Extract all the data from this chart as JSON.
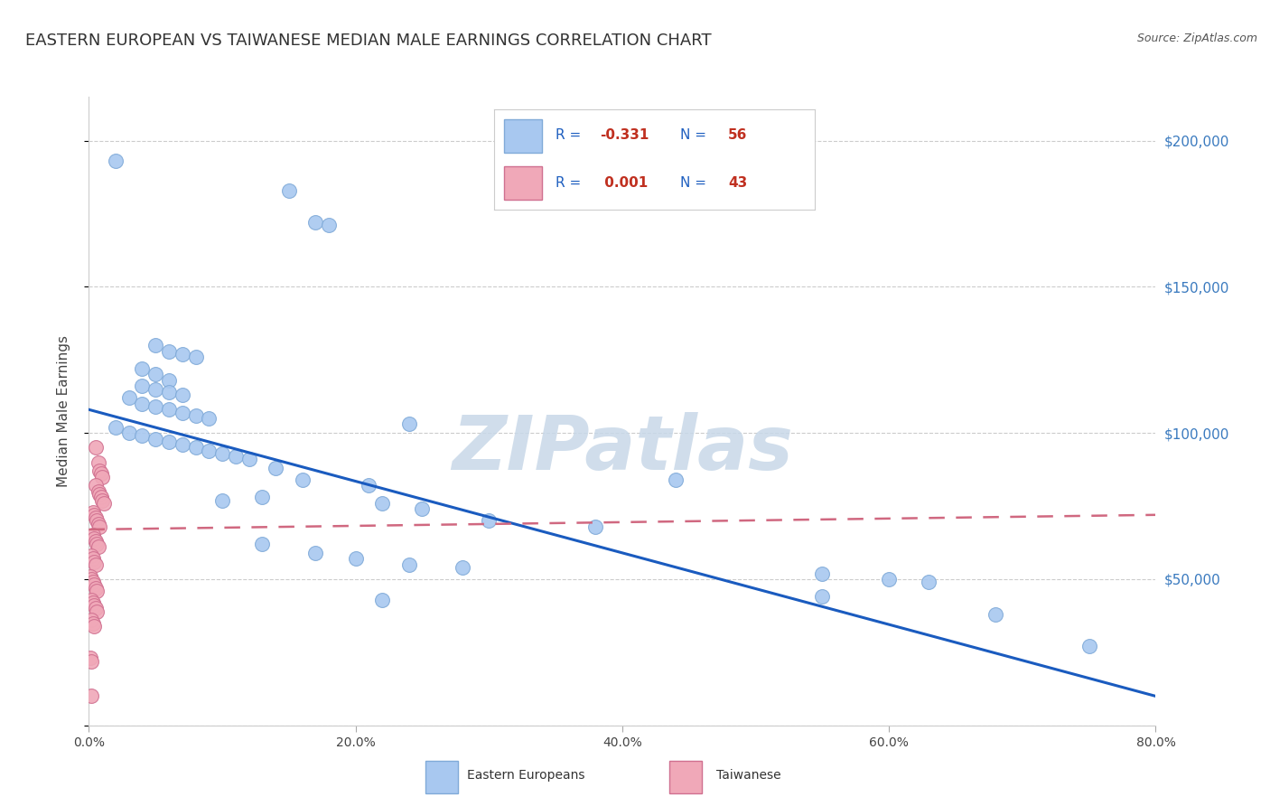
{
  "title": "EASTERN EUROPEAN VS TAIWANESE MEDIAN MALE EARNINGS CORRELATION CHART",
  "source": "Source: ZipAtlas.com",
  "ylabel": "Median Male Earnings",
  "xlim": [
    0,
    0.8
  ],
  "ylim": [
    0,
    215000
  ],
  "yticks": [
    0,
    50000,
    100000,
    150000,
    200000
  ],
  "xticks": [
    0.0,
    0.2,
    0.4,
    0.6,
    0.8
  ],
  "xtick_labels": [
    "0.0%",
    "20.0%",
    "40.0%",
    "60.0%",
    "80.0%"
  ],
  "watermark": "ZIPatlas",
  "blue_scatter": [
    [
      0.02,
      193000
    ],
    [
      0.15,
      183000
    ],
    [
      0.17,
      172000
    ],
    [
      0.18,
      171000
    ],
    [
      0.05,
      130000
    ],
    [
      0.06,
      128000
    ],
    [
      0.07,
      127000
    ],
    [
      0.08,
      126000
    ],
    [
      0.04,
      122000
    ],
    [
      0.05,
      120000
    ],
    [
      0.06,
      118000
    ],
    [
      0.04,
      116000
    ],
    [
      0.05,
      115000
    ],
    [
      0.06,
      114000
    ],
    [
      0.07,
      113000
    ],
    [
      0.03,
      112000
    ],
    [
      0.04,
      110000
    ],
    [
      0.05,
      109000
    ],
    [
      0.06,
      108000
    ],
    [
      0.07,
      107000
    ],
    [
      0.08,
      106000
    ],
    [
      0.09,
      105000
    ],
    [
      0.02,
      102000
    ],
    [
      0.03,
      100000
    ],
    [
      0.04,
      99000
    ],
    [
      0.05,
      98000
    ],
    [
      0.06,
      97000
    ],
    [
      0.07,
      96000
    ],
    [
      0.08,
      95000
    ],
    [
      0.09,
      94000
    ],
    [
      0.1,
      93000
    ],
    [
      0.11,
      92000
    ],
    [
      0.12,
      91000
    ],
    [
      0.24,
      103000
    ],
    [
      0.14,
      88000
    ],
    [
      0.16,
      84000
    ],
    [
      0.21,
      82000
    ],
    [
      0.13,
      78000
    ],
    [
      0.1,
      77000
    ],
    [
      0.22,
      76000
    ],
    [
      0.25,
      74000
    ],
    [
      0.3,
      70000
    ],
    [
      0.38,
      68000
    ],
    [
      0.44,
      84000
    ],
    [
      0.13,
      62000
    ],
    [
      0.17,
      59000
    ],
    [
      0.2,
      57000
    ],
    [
      0.24,
      55000
    ],
    [
      0.28,
      54000
    ],
    [
      0.55,
      52000
    ],
    [
      0.6,
      50000
    ],
    [
      0.63,
      49000
    ],
    [
      0.68,
      38000
    ],
    [
      0.55,
      44000
    ],
    [
      0.22,
      43000
    ],
    [
      0.75,
      27000
    ]
  ],
  "pink_scatter": [
    [
      0.005,
      95000
    ],
    [
      0.007,
      90000
    ],
    [
      0.008,
      87000
    ],
    [
      0.009,
      86000
    ],
    [
      0.01,
      85000
    ],
    [
      0.005,
      82000
    ],
    [
      0.007,
      80000
    ],
    [
      0.008,
      79000
    ],
    [
      0.009,
      78000
    ],
    [
      0.01,
      77000
    ],
    [
      0.011,
      76000
    ],
    [
      0.003,
      73000
    ],
    [
      0.004,
      72000
    ],
    [
      0.005,
      71000
    ],
    [
      0.006,
      70000
    ],
    [
      0.007,
      69000
    ],
    [
      0.008,
      68000
    ],
    [
      0.003,
      65000
    ],
    [
      0.004,
      64000
    ],
    [
      0.005,
      63000
    ],
    [
      0.006,
      62000
    ],
    [
      0.007,
      61000
    ],
    [
      0.002,
      58000
    ],
    [
      0.003,
      57000
    ],
    [
      0.004,
      56000
    ],
    [
      0.005,
      55000
    ],
    [
      0.001,
      51000
    ],
    [
      0.002,
      50000
    ],
    [
      0.003,
      49000
    ],
    [
      0.004,
      48000
    ],
    [
      0.005,
      47000
    ],
    [
      0.006,
      46000
    ],
    [
      0.002,
      43000
    ],
    [
      0.003,
      42000
    ],
    [
      0.004,
      41000
    ],
    [
      0.005,
      40000
    ],
    [
      0.006,
      39000
    ],
    [
      0.002,
      36000
    ],
    [
      0.003,
      35000
    ],
    [
      0.004,
      34000
    ],
    [
      0.001,
      23000
    ],
    [
      0.002,
      22000
    ],
    [
      0.002,
      10000
    ]
  ],
  "blue_line_x": [
    0.0,
    0.8
  ],
  "blue_line_y": [
    108000,
    10000
  ],
  "pink_line_x": [
    0.0,
    0.8
  ],
  "pink_line_y": [
    67000,
    72000
  ],
  "background_color": "#ffffff",
  "grid_color": "#cccccc",
  "blue_dot_color": "#a8c8f0",
  "blue_dot_edge": "#80aad8",
  "pink_dot_color": "#f0a8b8",
  "pink_dot_edge": "#d07090",
  "blue_line_color": "#1a5bbf",
  "pink_line_color": "#d06880",
  "title_fontsize": 13,
  "axis_label_fontsize": 11,
  "tick_fontsize": 10,
  "legend_fontsize": 12,
  "watermark_color": "#c8d8e8",
  "watermark_fontsize": 60,
  "right_ytick_color": "#3a7abf",
  "right_ytick_fontsize": 11,
  "legend_blue_r": "R = -0.331",
  "legend_blue_n": "N = 56",
  "legend_pink_r": "R =  0.001",
  "legend_pink_n": "N = 43",
  "bottom_legend_eastern": "Eastern Europeans",
  "bottom_legend_taiwanese": "Taiwanese"
}
